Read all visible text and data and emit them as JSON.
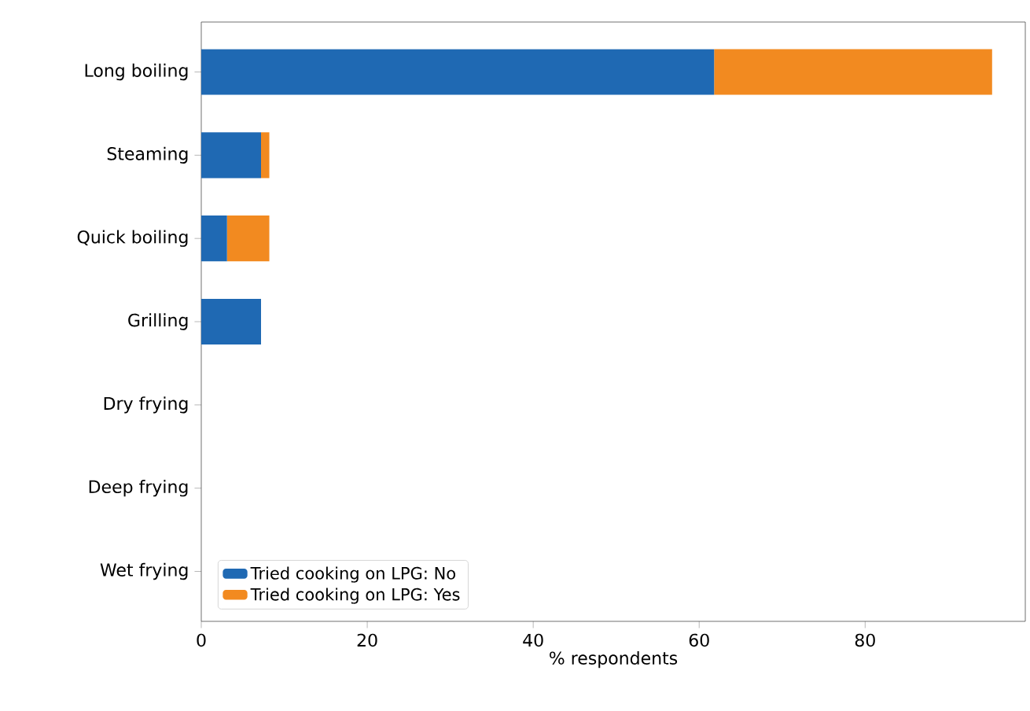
{
  "chart_data": {
    "type": "bar",
    "orientation": "horizontal",
    "stacked": true,
    "xlabel": "% respondents",
    "categories": [
      "Long boiling",
      "Steaming",
      "Quick boiling",
      "Grilling",
      "Dry frying",
      "Deep frying",
      "Wet frying"
    ],
    "series": [
      {
        "name": "Tried cooking on LPG: No",
        "color": "#1f69b3",
        "values": [
          61.8,
          7.2,
          3.1,
          7.2,
          0,
          0,
          0
        ]
      },
      {
        "name": "Tried cooking on LPG: Yes",
        "color": "#f28a20",
        "values": [
          33.5,
          1.0,
          5.1,
          0,
          0,
          0,
          0
        ]
      }
    ],
    "xlim": [
      0,
      99.3
    ],
    "xticks": [
      0,
      20,
      40,
      60,
      80
    ],
    "legend": "bottom left",
    "grid": false
  }
}
